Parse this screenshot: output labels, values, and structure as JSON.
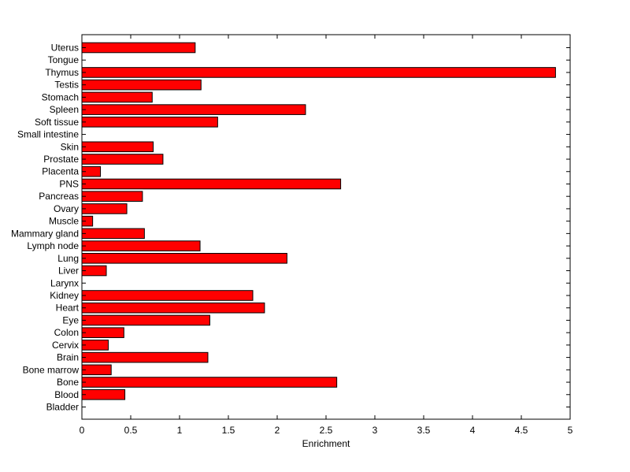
{
  "chart_data": {
    "type": "bar",
    "orientation": "horizontal",
    "title": "",
    "xlabel": "Enrichment",
    "ylabel": "",
    "xlim": [
      0,
      5
    ],
    "xticks": [
      0,
      0.5,
      1,
      1.5,
      2,
      2.5,
      3,
      3.5,
      4,
      4.5,
      5
    ],
    "xtick_labels": [
      "0",
      "0.5",
      "1",
      "1.5",
      "2",
      "2.5",
      "3",
      "3.5",
      "4",
      "4.5",
      "5"
    ],
    "grid": false,
    "legend": "none",
    "bar_color": "#ff0000",
    "bar_edge_color": "#000000",
    "categories": [
      "Bladder",
      "Blood",
      "Bone",
      "Bone marrow",
      "Brain",
      "Cervix",
      "Colon",
      "Eye",
      "Heart",
      "Kidney",
      "Larynx",
      "Liver",
      "Lung",
      "Lymph node",
      "Mammary gland",
      "Muscle",
      "Ovary",
      "Pancreas",
      "PNS",
      "Placenta",
      "Prostate",
      "Skin",
      "Small intestine",
      "Soft tissue",
      "Spleen",
      "Stomach",
      "Testis",
      "Thymus",
      "Tongue",
      "Uterus"
    ],
    "values": [
      0,
      0.44,
      2.61,
      0.3,
      1.29,
      0.27,
      0.43,
      1.31,
      1.87,
      1.75,
      0,
      0.25,
      2.1,
      1.21,
      0.64,
      0.11,
      0.46,
      0.62,
      2.65,
      0.19,
      0.83,
      0.73,
      0,
      1.39,
      2.29,
      0.72,
      1.22,
      4.85,
      0,
      1.16
    ]
  }
}
